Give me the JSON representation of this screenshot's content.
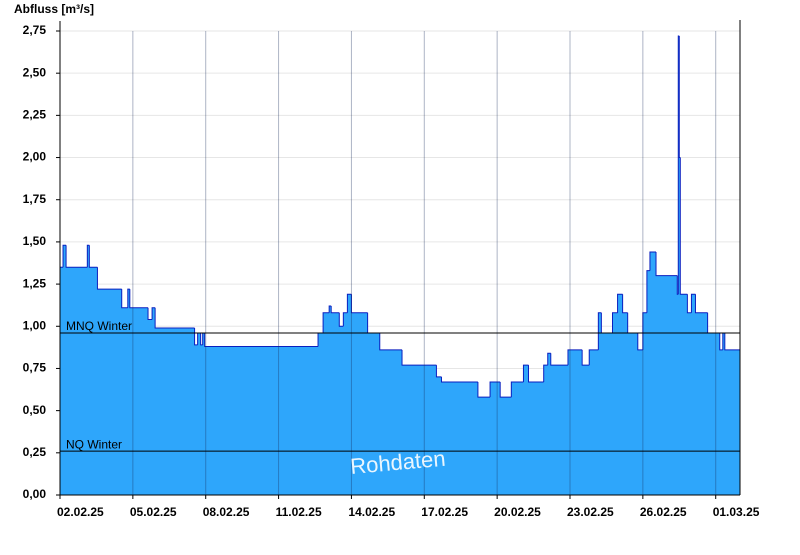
{
  "chart_data": {
    "type": "step-area",
    "y_label": "Abfluss [m³/s]",
    "annotation": "Rohdaten",
    "color": "#2ea6fb",
    "line_color": "#0a1fbf",
    "grid": true,
    "xlim": [
      "2025-02-02T00:00",
      "2025-03-02T00:00"
    ],
    "xticks": [
      {
        "value": "2025-02-02T00:00",
        "label": "02.02.25"
      },
      {
        "value": "2025-02-05T00:00",
        "label": "05.02.25"
      },
      {
        "value": "2025-02-08T00:00",
        "label": "08.02.25"
      },
      {
        "value": "2025-02-11T00:00",
        "label": "11.02.25"
      },
      {
        "value": "2025-02-14T00:00",
        "label": "14.02.25"
      },
      {
        "value": "2025-02-17T00:00",
        "label": "17.02.25"
      },
      {
        "value": "2025-02-20T00:00",
        "label": "20.02.25"
      },
      {
        "value": "2025-02-23T00:00",
        "label": "23.02.25"
      },
      {
        "value": "2025-02-26T00:00",
        "label": "26.02.25"
      },
      {
        "value": "2025-03-01T00:00",
        "label": "01.03.25"
      }
    ],
    "ylim": [
      0,
      2.75
    ],
    "yticks": [
      {
        "value": 0,
        "label": "0,00"
      },
      {
        "value": 0.25,
        "label": "0,25"
      },
      {
        "value": 0.5,
        "label": "0,50"
      },
      {
        "value": 0.75,
        "label": "0,75"
      },
      {
        "value": 1,
        "label": "1,00"
      },
      {
        "value": 1.25,
        "label": "1,25"
      },
      {
        "value": 1.5,
        "label": "1,50"
      },
      {
        "value": 1.75,
        "label": "1,75"
      },
      {
        "value": 2,
        "label": "2,00"
      },
      {
        "value": 2.25,
        "label": "2,25"
      },
      {
        "value": 2.5,
        "label": "2,50"
      },
      {
        "value": 2.75,
        "label": "2,75"
      }
    ],
    "hlines": [
      {
        "value": 0.96,
        "label": "MNQ Winter"
      },
      {
        "value": 0.26,
        "label": "NQ Winter"
      }
    ],
    "x": [
      "2025-02-02T00:00",
      "2025-02-02T03:00",
      "2025-02-02T06:00",
      "2025-02-03T03:00",
      "2025-02-03T05:00",
      "2025-02-03T13:00",
      "2025-02-04T13:00",
      "2025-02-04T19:00",
      "2025-02-04T21:00",
      "2025-02-05T15:00",
      "2025-02-05T19:00",
      "2025-02-05T22:00",
      "2025-02-07T13:00",
      "2025-02-07T16:00",
      "2025-02-07T19:00",
      "2025-02-07T21:00",
      "2025-02-07T23:00",
      "2025-02-12T15:00",
      "2025-02-12T20:00",
      "2025-02-13T02:00",
      "2025-02-13T04:00",
      "2025-02-13T12:00",
      "2025-02-13T16:00",
      "2025-02-13T20:00",
      "2025-02-14T00:00",
      "2025-02-14T16:00",
      "2025-02-15T04:00",
      "2025-02-16T02:00",
      "2025-02-17T12:00",
      "2025-02-17T17:00",
      "2025-02-19T05:00",
      "2025-02-19T17:00",
      "2025-02-20T03:00",
      "2025-02-20T14:00",
      "2025-02-21T02:00",
      "2025-02-21T07:00",
      "2025-02-21T22:00",
      "2025-02-22T02:00",
      "2025-02-22T05:00",
      "2025-02-22T22:00",
      "2025-02-23T12:00",
      "2025-02-23T19:00",
      "2025-02-24T04:00",
      "2025-02-24T07:00",
      "2025-02-24T18:00",
      "2025-02-24T23:00",
      "2025-02-25T04:00",
      "2025-02-25T09:00",
      "2025-02-25T19:00",
      "2025-02-26T00:00",
      "2025-02-26T04:00",
      "2025-02-26T07:00",
      "2025-02-26T13:00",
      "2025-02-27T10:00",
      "2025-02-27T11:00",
      "2025-02-27T12:00",
      "2025-02-27T13:00",
      "2025-02-27T20:00",
      "2025-02-28T00:00",
      "2025-02-28T04:00",
      "2025-02-28T16:00",
      "2025-03-01T04:00",
      "2025-03-01T07:00",
      "2025-03-01T09:00"
    ],
    "values": [
      1.35,
      1.48,
      1.35,
      1.48,
      1.35,
      1.22,
      1.11,
      1.22,
      1.11,
      1.04,
      1.11,
      0.99,
      0.89,
      0.96,
      0.89,
      0.96,
      0.88,
      0.96,
      1.08,
      1.12,
      1.08,
      1.0,
      1.08,
      1.19,
      1.08,
      0.96,
      0.86,
      0.77,
      0.7,
      0.67,
      0.58,
      0.67,
      0.58,
      0.67,
      0.77,
      0.67,
      0.77,
      0.84,
      0.77,
      0.86,
      0.77,
      0.86,
      1.08,
      0.96,
      1.08,
      1.19,
      1.08,
      0.96,
      0.86,
      1.08,
      1.33,
      1.44,
      1.3,
      1.19,
      2.72,
      2.0,
      1.19,
      1.08,
      1.19,
      1.08,
      0.96,
      0.86,
      0.96,
      0.86
    ]
  }
}
